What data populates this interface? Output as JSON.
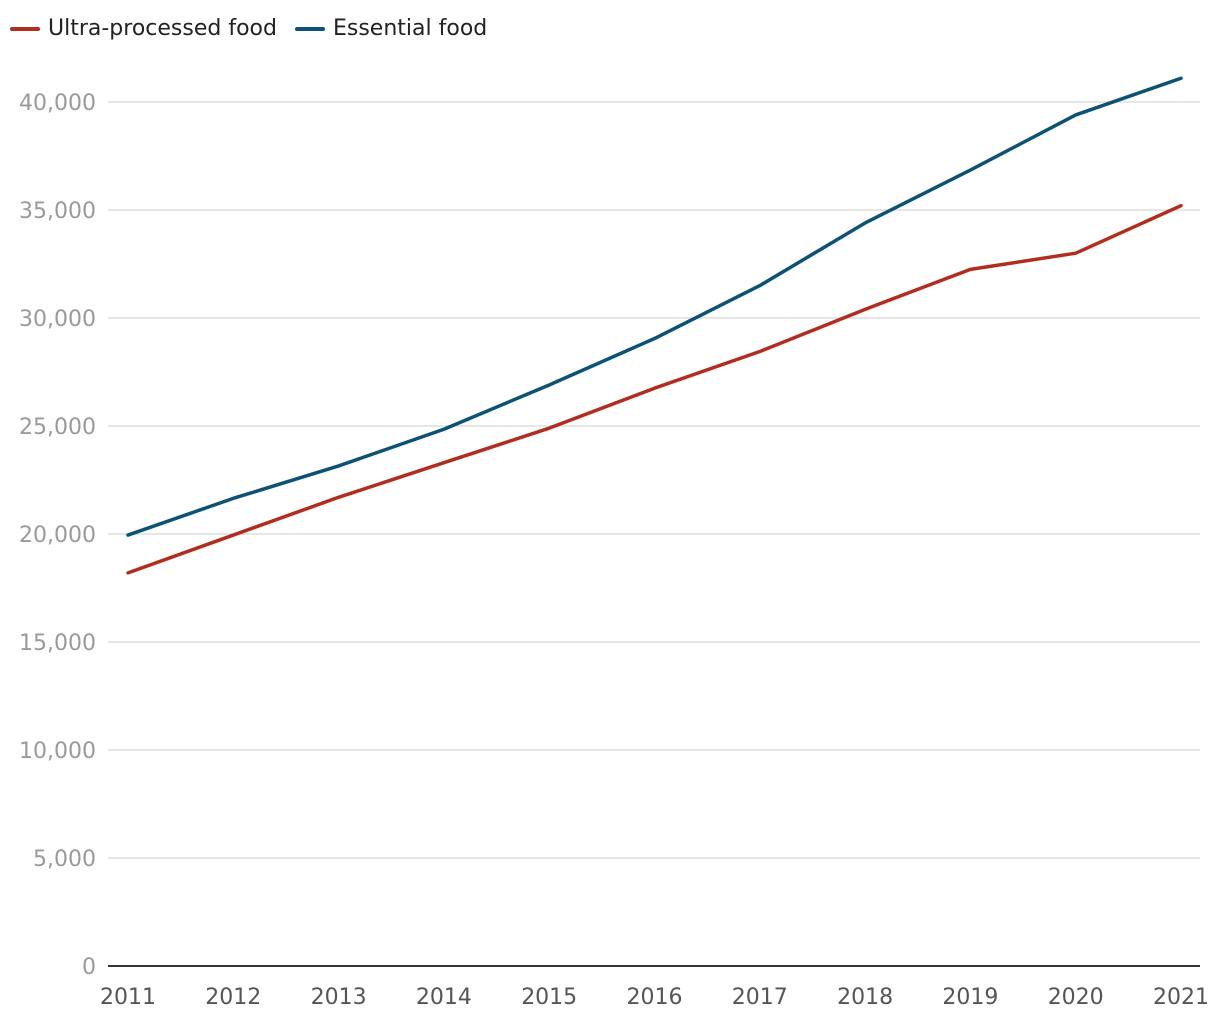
{
  "chart_data": {
    "type": "line",
    "x": [
      "2011",
      "2012",
      "2013",
      "2014",
      "2015",
      "2016",
      "2017",
      "2018",
      "2019",
      "2020",
      "2021"
    ],
    "series": [
      {
        "name": "Ultra-processed food",
        "color": "#b22d1d",
        "values": [
          18200,
          19950,
          21700,
          23300,
          24900,
          26750,
          28450,
          30400,
          32250,
          33000,
          35200
        ]
      },
      {
        "name": "Essential food",
        "color": "#0b5275",
        "values": [
          19950,
          21650,
          23150,
          24850,
          26900,
          29050,
          31500,
          34400,
          36850,
          39400,
          41100
        ]
      }
    ],
    "yticks": [
      "0",
      "5,000",
      "10,000",
      "15,000",
      "20,000",
      "25,000",
      "30,000",
      "35,000",
      "40,000"
    ],
    "ytick_values": [
      0,
      5000,
      10000,
      15000,
      20000,
      25000,
      30000,
      35000,
      40000
    ],
    "ylim": [
      0,
      40000
    ],
    "grid": true,
    "legend_position": "top-left",
    "title": "",
    "xlabel": "",
    "ylabel": ""
  }
}
